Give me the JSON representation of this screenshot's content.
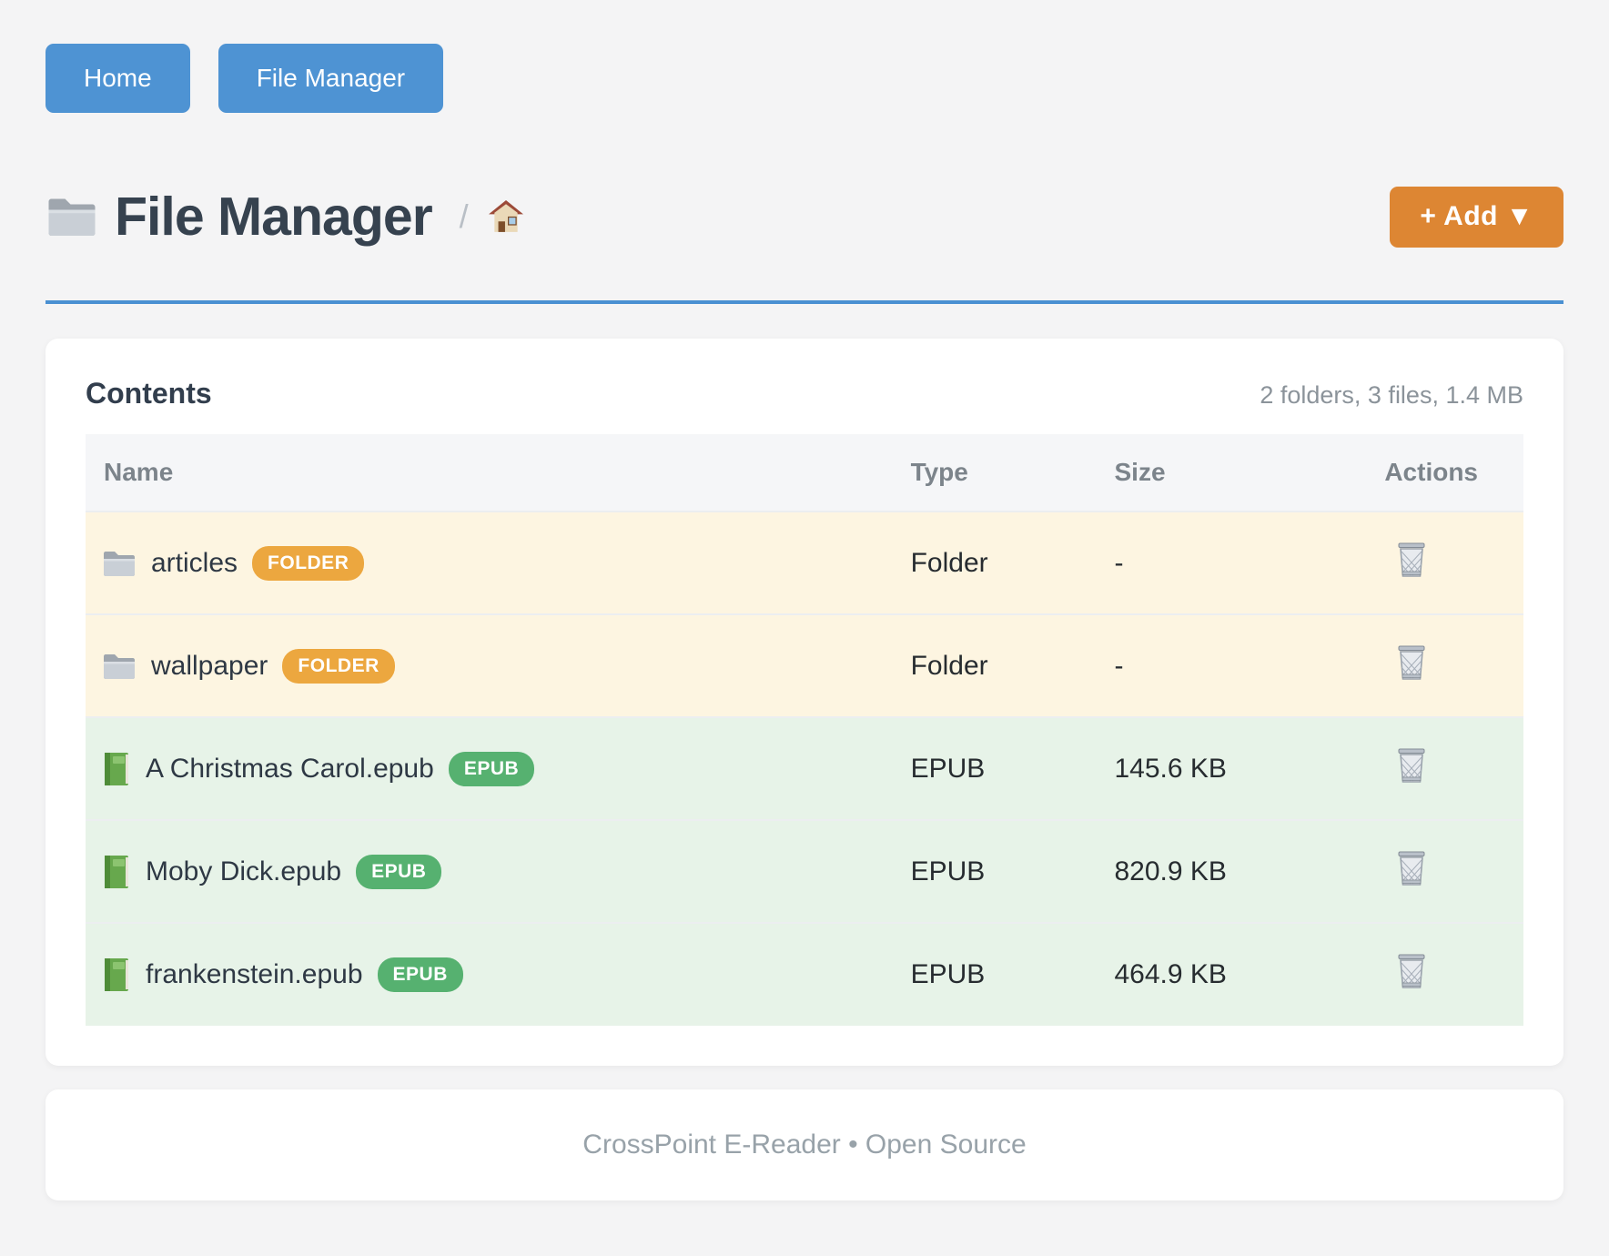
{
  "nav": {
    "buttons": [
      {
        "label": "Home"
      },
      {
        "label": "File Manager"
      }
    ]
  },
  "header": {
    "title": "File Manager",
    "breadcrumb_separator": "/",
    "add_button_label": "+ Add ▼"
  },
  "contents": {
    "heading": "Contents",
    "summary": "2 folders, 3 files, 1.4 MB",
    "table": {
      "columns": [
        "Name",
        "Type",
        "Size",
        "Actions"
      ],
      "rows": [
        {
          "name": "articles",
          "kind": "folder",
          "badge": "FOLDER",
          "type": "Folder",
          "size": "-"
        },
        {
          "name": "wallpaper",
          "kind": "folder",
          "badge": "FOLDER",
          "type": "Folder",
          "size": "-"
        },
        {
          "name": "A Christmas Carol.epub",
          "kind": "epub",
          "badge": "EPUB",
          "type": "EPUB",
          "size": "145.6 KB"
        },
        {
          "name": "Moby Dick.epub",
          "kind": "epub",
          "badge": "EPUB",
          "type": "EPUB",
          "size": "820.9 KB"
        },
        {
          "name": "frankenstein.epub",
          "kind": "epub",
          "badge": "EPUB",
          "type": "EPUB",
          "size": "464.9 KB"
        }
      ]
    }
  },
  "footer": {
    "text": "CrossPoint E-Reader • Open Source"
  },
  "icons": {
    "title": "folder-icon",
    "breadcrumb_home": "home-icon",
    "row_folder": "folder-icon",
    "row_epub": "book-icon",
    "action_delete": "trash-icon"
  },
  "colors": {
    "page_background": "#f4f4f5",
    "primary_blue": "#4e93d3",
    "rule_blue": "#4a90d2",
    "accent_orange": "#dd8633",
    "badge_folder": "#eca73f",
    "badge_epub": "#56b170",
    "row_folder_bg": "#fdf5e1",
    "row_epub_bg": "#e7f3e8",
    "title_text": "#36424f"
  }
}
